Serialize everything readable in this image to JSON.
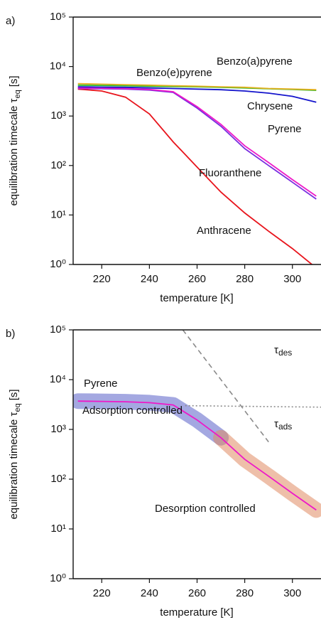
{
  "chart_data": [
    {
      "type": "line",
      "panel_label": "a)",
      "xlabel": "temperature [K]",
      "ylabel": {
        "text": "equilibration timecale τ",
        "subscript": "eq",
        "unit": "[s]"
      },
      "log_y": true,
      "xlim": [
        208,
        312
      ],
      "ylim": [
        1,
        100000
      ],
      "xticks": [
        220,
        240,
        260,
        280,
        300
      ],
      "yticks": [
        {
          "value": 1,
          "label": "10⁰"
        },
        {
          "value": 10,
          "label": "10¹"
        },
        {
          "value": 100,
          "label": "10²"
        },
        {
          "value": 1000,
          "label": "10³"
        },
        {
          "value": 10000,
          "label": "10⁴"
        },
        {
          "value": 100000,
          "label": "10⁵"
        }
      ],
      "x": [
        210,
        220,
        230,
        240,
        250,
        260,
        270,
        280,
        290,
        300,
        310
      ],
      "series": [
        {
          "name": "Anthracene",
          "color": "#e8141c",
          "values": [
            3500,
            3200,
            2400,
            1100,
            300,
            93,
            29,
            11,
            4.7,
            2.1,
            0.85
          ]
        },
        {
          "name": "Fluoranthene",
          "color": "#7a2ee0",
          "values": [
            3600,
            3550,
            3500,
            3350,
            3000,
            1450,
            620,
            220,
            100,
            46,
            21
          ]
        },
        {
          "name": "Pyrene",
          "color": "#ee18c8",
          "values": [
            3700,
            3650,
            3600,
            3450,
            3100,
            1550,
            680,
            250,
            115,
            52,
            24
          ]
        },
        {
          "name": "Chrysene",
          "color": "#1414cc",
          "values": [
            3900,
            3850,
            3800,
            3700,
            3600,
            3500,
            3400,
            3200,
            2900,
            2500,
            1900
          ]
        },
        {
          "name": "Benzo(e)pyrene",
          "color": "#28b828",
          "values": [
            4200,
            4150,
            4100,
            4000,
            3950,
            3900,
            3800,
            3700,
            3550,
            3450,
            3300
          ]
        },
        {
          "name": "Benzo(a)pyrene",
          "color": "#e2b020",
          "values": [
            4500,
            4400,
            4300,
            4200,
            4100,
            4000,
            3900,
            3800,
            3600,
            3500,
            3400
          ]
        }
      ]
    },
    {
      "type": "line",
      "panel_label": "b)",
      "xlabel": "temperature [K]",
      "ylabel": {
        "text": "equilibration timecale τ",
        "subscript": "eq",
        "unit": "[s]"
      },
      "log_y": true,
      "xlim": [
        208,
        312
      ],
      "ylim": [
        1,
        100000
      ],
      "xticks": [
        220,
        240,
        260,
        280,
        300
      ],
      "yticks": [
        {
          "value": 1,
          "label": "10⁰"
        },
        {
          "value": 10,
          "label": "10¹"
        },
        {
          "value": 100,
          "label": "10²"
        },
        {
          "value": 1000,
          "label": "10³"
        },
        {
          "value": 10000,
          "label": "10⁴"
        },
        {
          "value": 100000,
          "label": "10⁵"
        }
      ],
      "x": [
        210,
        220,
        230,
        240,
        250,
        260,
        270,
        280,
        290,
        300,
        310
      ],
      "bands": [
        {
          "text": "Adsorption controlled",
          "color": "#5a60c8",
          "xlim": [
            210,
            270
          ]
        },
        {
          "text": "Desorption controlled",
          "color": "#e08a62",
          "xlim": [
            270,
            312
          ]
        }
      ],
      "series": [
        {
          "name": "τ",
          "subscript": "des",
          "color": "#8a8a8a",
          "dash": "dashed",
          "x": [
            254,
            290
          ],
          "values": [
            100000,
            560
          ]
        },
        {
          "name": "τ",
          "subscript": "ads",
          "color": "#8a8a8a",
          "dash": "dotted",
          "x": [
            255,
            312
          ],
          "values": [
            3000,
            2800
          ]
        },
        {
          "name": "Pyrene",
          "color": "#ee18c8",
          "values": [
            3700,
            3650,
            3600,
            3450,
            3100,
            1550,
            680,
            250,
            115,
            52,
            24
          ]
        }
      ]
    }
  ]
}
